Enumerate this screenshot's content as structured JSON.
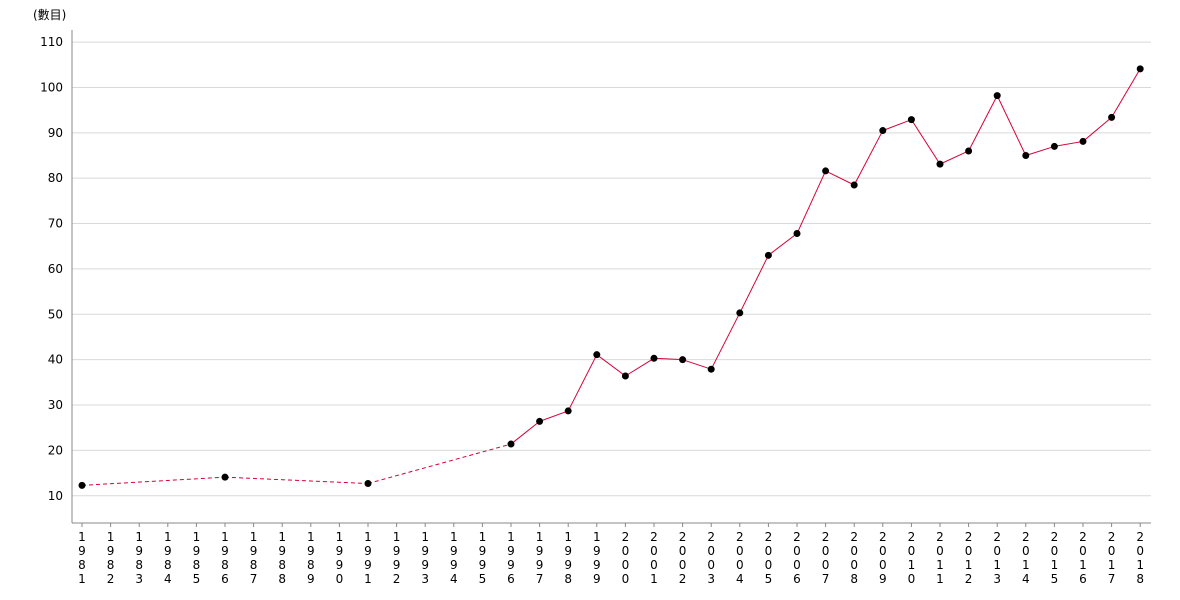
{
  "chart_data": {
    "type": "line",
    "ylabel": "(數目)",
    "ylim": [
      4,
      112
    ],
    "yticks": [
      10,
      20,
      30,
      40,
      50,
      60,
      70,
      80,
      90,
      100,
      110
    ],
    "grid": true,
    "categories": [
      "1981",
      "1982",
      "1983",
      "1984",
      "1985",
      "1986",
      "1987",
      "1988",
      "1989",
      "1990",
      "1991",
      "1992",
      "1993",
      "1994",
      "1995",
      "1996",
      "1997",
      "1998",
      "1999",
      "2000",
      "2001",
      "2002",
      "2003",
      "2004",
      "2005",
      "2006",
      "2007",
      "2008",
      "2009",
      "2010",
      "2011",
      "2012",
      "2013",
      "2014",
      "2015",
      "2016",
      "2017",
      "2018"
    ],
    "points": [
      {
        "x": "1981",
        "y": 12.3
      },
      {
        "x": "1986",
        "y": 14.1
      },
      {
        "x": "1991",
        "y": 12.7
      },
      {
        "x": "1996",
        "y": 21.4
      },
      {
        "x": "1997",
        "y": 26.4
      },
      {
        "x": "1998",
        "y": 28.7
      },
      {
        "x": "1999",
        "y": 41.1
      },
      {
        "x": "2000",
        "y": 36.4
      },
      {
        "x": "2001",
        "y": 40.3
      },
      {
        "x": "2002",
        "y": 40.0
      },
      {
        "x": "2003",
        "y": 37.9
      },
      {
        "x": "2004",
        "y": 50.3
      },
      {
        "x": "2005",
        "y": 63.0
      },
      {
        "x": "2006",
        "y": 67.8
      },
      {
        "x": "2007",
        "y": 81.6
      },
      {
        "x": "2008",
        "y": 78.5
      },
      {
        "x": "2009",
        "y": 90.5
      },
      {
        "x": "2010",
        "y": 92.9
      },
      {
        "x": "2011",
        "y": 83.1
      },
      {
        "x": "2012",
        "y": 86.0
      },
      {
        "x": "2013",
        "y": 98.2
      },
      {
        "x": "2014",
        "y": 85.0
      },
      {
        "x": "2015",
        "y": 87.0
      },
      {
        "x": "2016",
        "y": 88.1
      },
      {
        "x": "2017",
        "y": 93.4
      },
      {
        "x": "2018",
        "y": 104.1
      }
    ],
    "dashed_until": "1996",
    "colors": {
      "line": "#d6003a",
      "marker": "#000000",
      "grid": "#d9d9d9",
      "axis": "#888888"
    }
  }
}
